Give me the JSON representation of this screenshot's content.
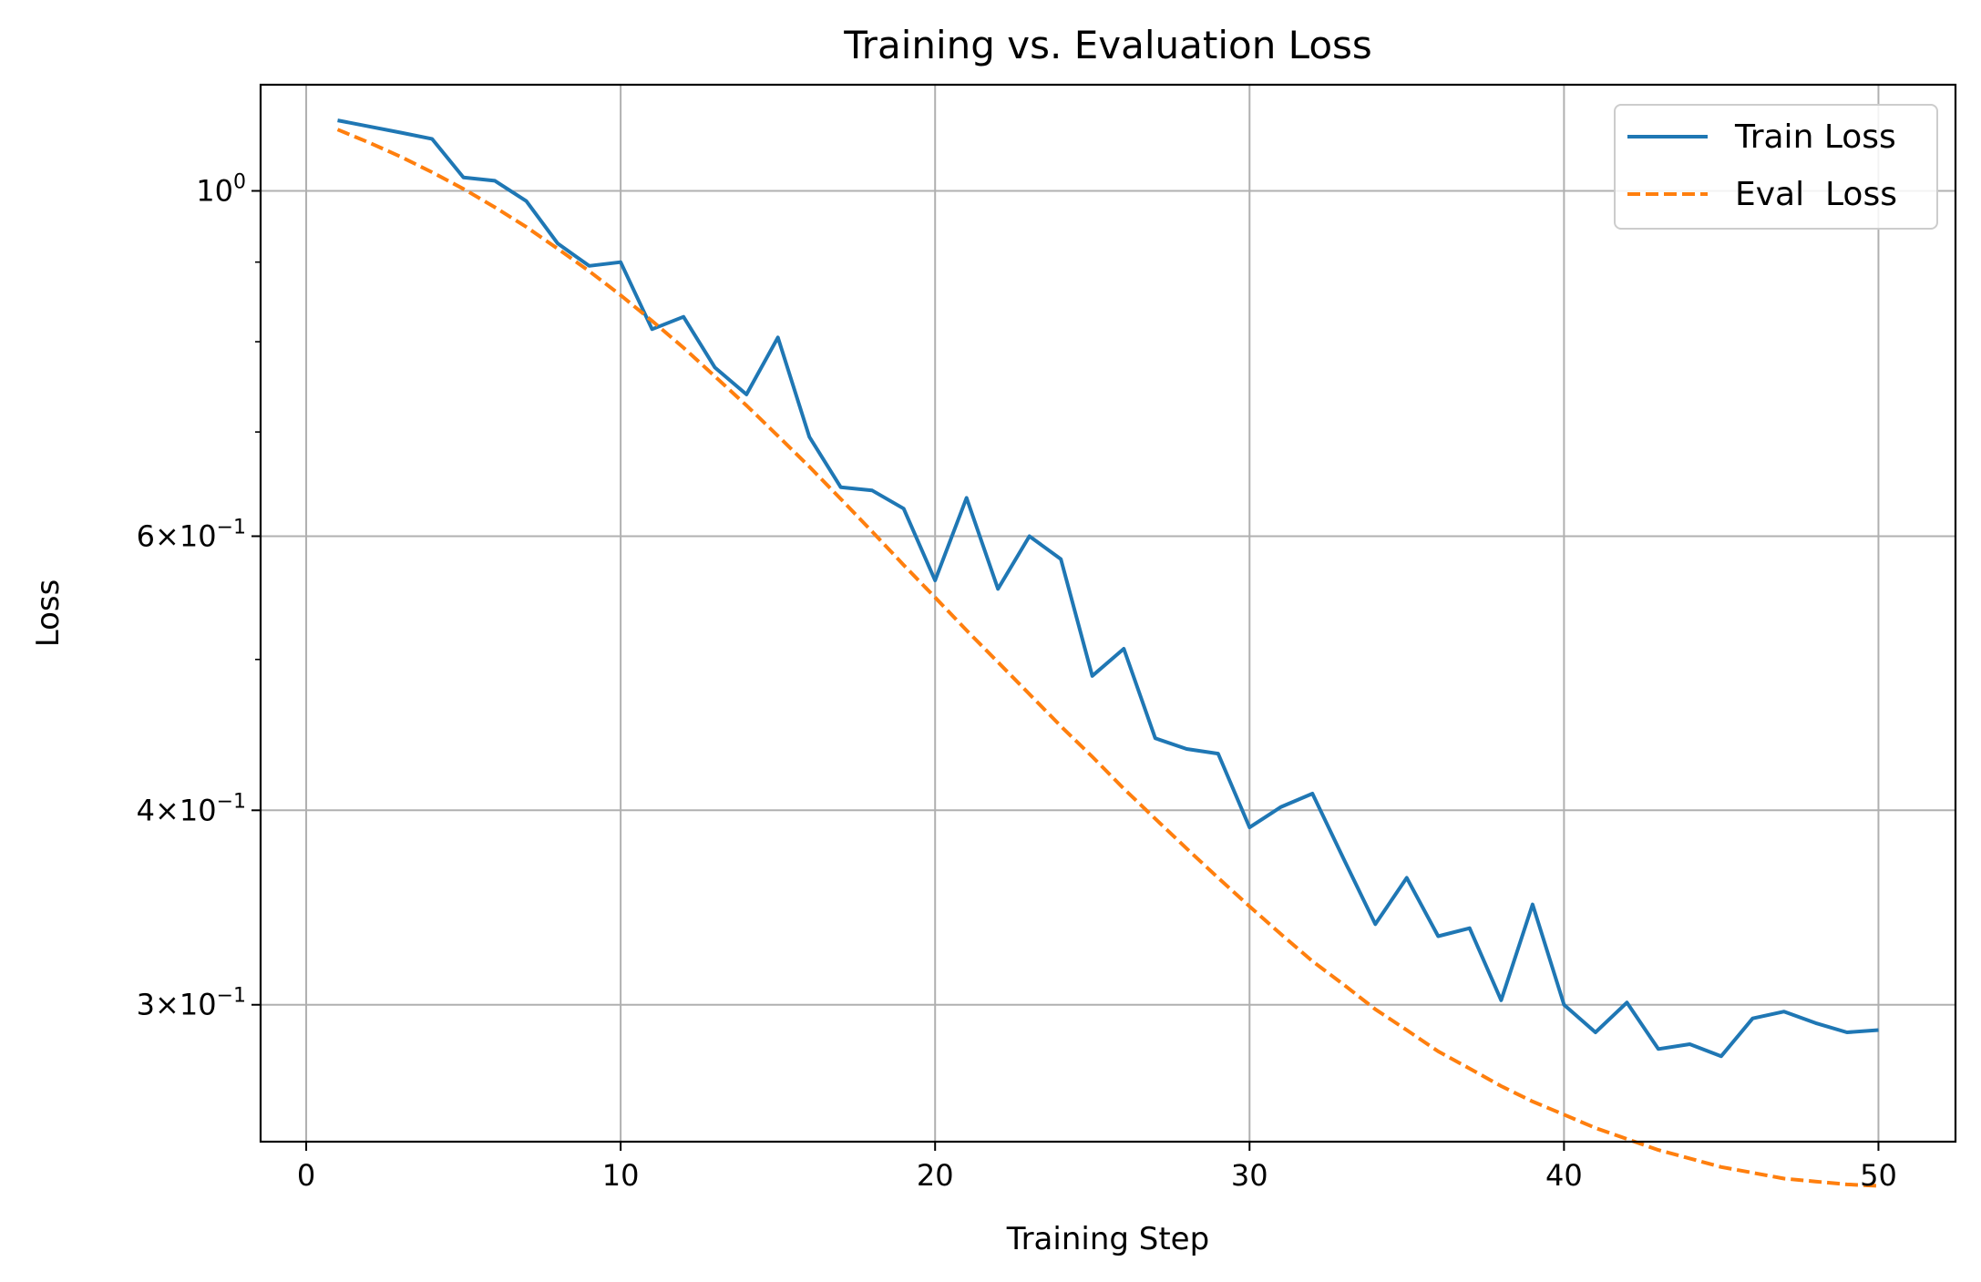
{
  "chart_data": {
    "type": "line",
    "title": "Training vs. Evaluation Loss",
    "xlabel": "Training Step",
    "ylabel": "Loss",
    "xscale": "linear",
    "yscale": "log",
    "xlim": [
      -1.45,
      52.45
    ],
    "ylim": [
      0.245,
      1.17
    ],
    "grid": true,
    "legend_position": "top-right",
    "xticks": [
      0,
      10,
      20,
      30,
      40,
      50
    ],
    "xtick_labels": [
      "0",
      "10",
      "20",
      "30",
      "40",
      "50"
    ],
    "yticks_major": [
      0.3,
      0.4,
      0.6,
      1.0
    ],
    "ytick_labels": [
      {
        "base": "3",
        "exp": "−1"
      },
      {
        "base": "4",
        "exp": "−1"
      },
      {
        "base": "6",
        "exp": "−1"
      },
      {
        "base": "",
        "exp": "0"
      }
    ],
    "yticks_minor": [
      0.5,
      0.7,
      0.8,
      0.9
    ],
    "x": [
      1,
      2,
      3,
      4,
      5,
      6,
      7,
      8,
      9,
      10,
      11,
      12,
      13,
      14,
      15,
      16,
      17,
      18,
      19,
      20,
      21,
      22,
      23,
      24,
      25,
      26,
      27,
      28,
      29,
      30,
      31,
      32,
      33,
      34,
      35,
      36,
      37,
      38,
      39,
      40,
      41,
      42,
      43,
      44,
      45,
      46,
      47,
      48,
      49,
      50
    ],
    "series": [
      {
        "name": "Train Loss",
        "color": "#1f77b4",
        "linestyle": "solid",
        "values": [
          1.11,
          1.1,
          1.09,
          1.08,
          1.02,
          1.015,
          0.985,
          0.925,
          0.895,
          0.9,
          0.815,
          0.83,
          0.77,
          0.74,
          0.805,
          0.695,
          0.645,
          0.642,
          0.625,
          0.562,
          0.635,
          0.555,
          0.6,
          0.58,
          0.488,
          0.508,
          0.445,
          0.438,
          0.435,
          0.39,
          0.402,
          0.41,
          0.372,
          0.338,
          0.362,
          0.332,
          0.336,
          0.302,
          0.348,
          0.3,
          0.288,
          0.301,
          0.281,
          0.283,
          0.278,
          0.294,
          0.297,
          0.292,
          0.288,
          0.289
        ]
      },
      {
        "name": "Eval  Loss",
        "color": "#ff7f0e",
        "linestyle": "dashed",
        "values": [
          1.095,
          1.074,
          1.052,
          1.028,
          1.003,
          0.976,
          0.948,
          0.918,
          0.888,
          0.857,
          0.825,
          0.793,
          0.76,
          0.728,
          0.696,
          0.665,
          0.634,
          0.604,
          0.575,
          0.548,
          0.522,
          0.498,
          0.475,
          0.453,
          0.433,
          0.413,
          0.395,
          0.378,
          0.362,
          0.347,
          0.333,
          0.32,
          0.309,
          0.298,
          0.289,
          0.28,
          0.273,
          0.266,
          0.26,
          0.255,
          0.25,
          0.246,
          0.242,
          0.239,
          0.236,
          0.234,
          0.232,
          0.231,
          0.23,
          0.2295
        ]
      }
    ]
  }
}
